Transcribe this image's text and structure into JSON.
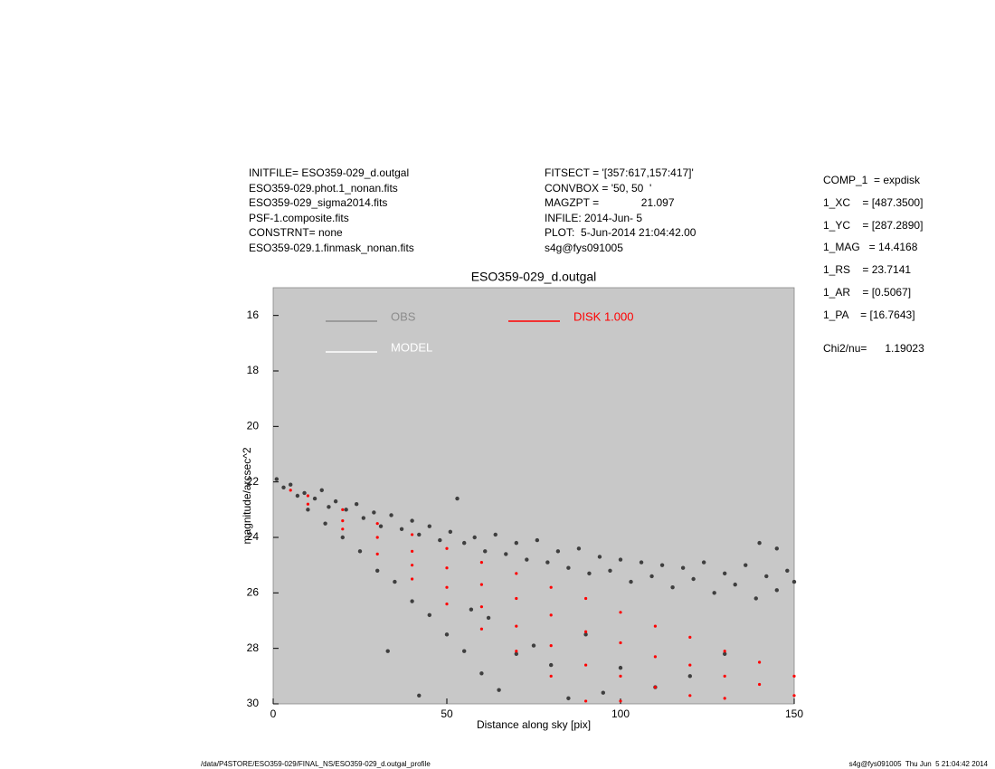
{
  "header": {
    "left": [
      "INITFILE= ESO359-029_d.outgal",
      "ESO359-029.phot.1_nonan.fits",
      "ESO359-029_sigma2014.fits",
      "PSF-1.composite.fits",
      "CONSTRNT= none",
      "ESO359-029.1.finmask_nonan.fits"
    ],
    "middle": [
      "FITSECT = '[357:617,157:417]'",
      "CONVBOX = '50, 50  '",
      "MAGZPT =              21.097",
      "INFILE: 2014-Jun- 5",
      "PLOT:  5-Jun-2014 21:04:42.00",
      "s4g@fys091005"
    ],
    "right": [
      "COMP_1  = expdisk",
      "1_XC    = [487.3500]",
      "1_YC    = [287.2890]",
      "1_MAG   = 14.4168",
      "1_RS    = 23.7141",
      "1_AR    = [0.5067]",
      "1_PA    = [16.7643]"
    ],
    "chi2": "Chi2/nu=      1.19023"
  },
  "footer": {
    "left": "/data/P4STORE/ESO359-029/FINAL_NS/ESO359-029_d.outgal_profile",
    "right": "s4g@fys091005  Thu Jun  5 21:04:42 2014"
  },
  "chart_data": {
    "type": "scatter",
    "title": "ESO359-029_d.outgal",
    "x_label": "Distance along sky [pix]",
    "y_label": "magnitude/arcsec^2",
    "xlim": [
      0,
      150
    ],
    "xticks": [
      0,
      50,
      100,
      150
    ],
    "ylim": [
      30,
      15
    ],
    "yticks": [
      16,
      18,
      20,
      22,
      24,
      26,
      28,
      30
    ],
    "background": "#c8c8c8",
    "series": [
      {
        "name": "OBS",
        "color": "#3f3f3f",
        "legend_color": "#8c8c8c",
        "x": [
          1,
          3,
          5,
          7,
          9,
          12,
          14,
          16,
          18,
          21,
          24,
          26,
          29,
          31,
          34,
          37,
          40,
          42,
          45,
          48,
          51,
          53,
          55,
          58,
          61,
          64,
          67,
          70,
          73,
          76,
          79,
          82,
          85,
          88,
          91,
          94,
          97,
          100,
          103,
          106,
          109,
          112,
          115,
          118,
          121,
          124,
          127,
          130,
          133,
          136,
          139,
          142,
          145,
          148,
          150,
          140,
          145,
          10,
          15,
          20,
          25,
          30,
          35,
          40,
          45,
          50,
          55,
          60,
          65,
          70,
          75,
          80,
          90,
          100,
          110,
          120,
          130,
          85,
          95,
          33,
          42,
          57,
          62
        ],
        "values": [
          21.9,
          22.2,
          22.1,
          22.5,
          22.4,
          22.6,
          22.3,
          22.9,
          22.7,
          23.0,
          22.8,
          23.3,
          23.1,
          23.6,
          23.2,
          23.7,
          23.4,
          23.9,
          23.6,
          24.1,
          23.8,
          22.6,
          24.2,
          24.0,
          24.5,
          23.9,
          24.6,
          24.2,
          24.8,
          24.1,
          24.9,
          24.5,
          25.1,
          24.4,
          25.3,
          24.7,
          25.2,
          24.8,
          25.6,
          24.9,
          25.4,
          25.0,
          25.8,
          25.1,
          25.5,
          24.9,
          26.0,
          25.3,
          25.7,
          25.0,
          26.2,
          25.4,
          25.9,
          25.2,
          25.6,
          24.2,
          24.4,
          23.0,
          23.5,
          24.0,
          24.5,
          25.2,
          25.6,
          26.3,
          26.8,
          27.5,
          28.1,
          28.9,
          29.5,
          28.2,
          27.9,
          28.6,
          27.5,
          28.7,
          29.4,
          29.0,
          28.2,
          29.8,
          29.6,
          28.1,
          29.7,
          26.6,
          26.9
        ]
      },
      {
        "name": "MODEL",
        "color": "#ffffff"
      },
      {
        "name": "DISK  1.000",
        "color": "#ff0000",
        "x": [
          5,
          10,
          10,
          20,
          20,
          20,
          30,
          30,
          30,
          40,
          40,
          40,
          40,
          50,
          50,
          50,
          50,
          60,
          60,
          60,
          60,
          70,
          70,
          70,
          70,
          80,
          80,
          80,
          80,
          90,
          90,
          90,
          90,
          100,
          100,
          100,
          100,
          110,
          110,
          110,
          120,
          120,
          120,
          130,
          130,
          130,
          140,
          140,
          150,
          150
        ],
        "values": [
          22.3,
          22.5,
          22.8,
          23.0,
          23.4,
          23.7,
          23.5,
          24.0,
          24.6,
          23.9,
          24.5,
          25.0,
          25.5,
          24.4,
          25.1,
          25.8,
          26.4,
          24.9,
          25.7,
          26.5,
          27.3,
          25.3,
          26.2,
          27.2,
          28.1,
          25.8,
          26.8,
          27.9,
          29.0,
          26.2,
          27.4,
          28.6,
          29.9,
          26.7,
          27.8,
          29.0,
          29.9,
          27.2,
          28.3,
          29.4,
          27.6,
          28.6,
          29.7,
          28.1,
          29.0,
          29.8,
          28.5,
          29.3,
          29.0,
          29.7
        ]
      }
    ]
  }
}
